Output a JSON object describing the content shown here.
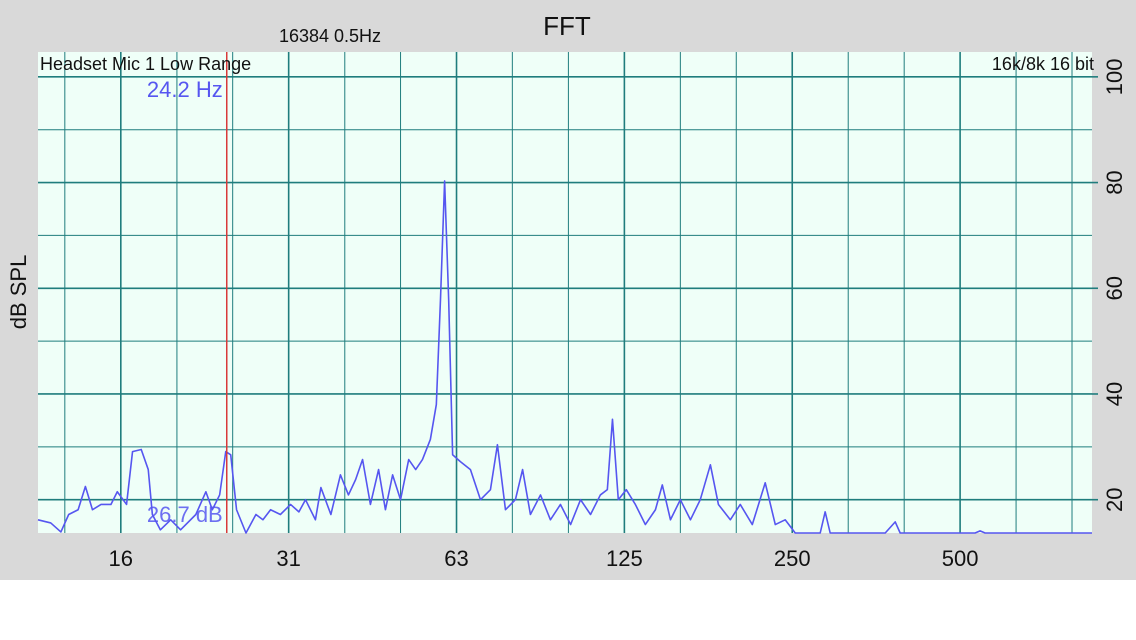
{
  "chart_data": {
    "type": "line",
    "title": "FFT",
    "subtitle": "16384  0.5Hz",
    "annotations": [
      "Headset Mic 1 Low Range",
      "16k/8k 16 bit"
    ],
    "ylabel": "dB SPL",
    "xscale": "log",
    "grid": true,
    "xlim": [
      11.1,
      862
    ],
    "ylim": [
      13.7,
      104.7
    ],
    "xticks": [
      {
        "value": 15.625,
        "label": "16"
      },
      {
        "value": 31.25,
        "label": "31"
      },
      {
        "value": 62.5,
        "label": "63"
      },
      125,
      250,
      500
    ],
    "xminor_ticks": [
      12.4,
      19.7,
      24.8,
      39.4,
      49.6,
      78.7,
      99.2,
      157.5,
      198.4,
      315,
      396.9,
      630,
      793.7
    ],
    "yticks": [
      20,
      40,
      60,
      80,
      100
    ],
    "yminor_ticks": [
      30,
      50,
      70,
      90
    ],
    "cursor": {
      "x": {
        "value": 24.2,
        "label": "24.2 Hz"
      },
      "y": {
        "value": 26.7,
        "label": "26.7 dB"
      },
      "color": "#d83a3a"
    },
    "x": [
      11.1,
      11.7,
      12.2,
      12.6,
      13.1,
      13.5,
      13.9,
      14.4,
      15.0,
      15.4,
      16.0,
      16.4,
      17.0,
      17.5,
      17.8,
      18.4,
      19.2,
      20.0,
      21.3,
      22.2,
      22.8,
      23.5,
      24.1,
      24.6,
      25.2,
      26.2,
      27.3,
      28.1,
      29.0,
      30.2,
      31.5,
      32.6,
      33.5,
      34.9,
      35.7,
      37.2,
      38.7,
      40.0,
      41.2,
      42.4,
      43.8,
      45.3,
      46.6,
      48.0,
      49.6,
      51.3,
      52.8,
      54.3,
      56.1,
      57.5,
      58.5,
      59.5,
      60.5,
      61.5,
      63.5,
      66.2,
      69.0,
      71.9,
      74.0,
      76.5,
      79.7,
      82.1,
      84.8,
      88.4,
      92.1,
      96.0,
      100.1,
      104.3,
      108.7,
      113.2,
      116.5,
      119.0,
      121.9,
      126.0,
      130.8,
      136.3,
      142.1,
      146.2,
      151.2,
      157.5,
      164.2,
      171.0,
      178.3,
      184.3,
      193.6,
      201.7,
      212.0,
      223.6,
      233.1,
      242.8,
      253.1,
      280.6,
      286.4,
      292.4,
      367.0,
      382.5,
      390.4,
      531.9,
      543.0,
      554.4,
      862
    ],
    "series": [
      {
        "color": "#5656f0",
        "values": [
          16.2,
          15.6,
          13.9,
          17.2,
          18.1,
          22.5,
          18.1,
          19.1,
          19.1,
          21.5,
          19.1,
          29.1,
          29.5,
          25.7,
          17.2,
          14.3,
          16.2,
          14.3,
          17.2,
          21.5,
          18.1,
          20.9,
          29.1,
          28.5,
          18.1,
          13.7,
          17.2,
          16.2,
          18.1,
          17.2,
          19.1,
          17.7,
          20.0,
          16.2,
          22.3,
          17.2,
          24.7,
          20.9,
          23.8,
          27.6,
          19.1,
          25.7,
          18.1,
          24.7,
          20.0,
          27.6,
          25.7,
          27.6,
          31.4,
          38.0,
          58.0,
          80.3,
          58.0,
          28.5,
          27.2,
          25.7,
          20.0,
          21.9,
          30.4,
          18.1,
          20.0,
          25.7,
          17.2,
          20.9,
          16.2,
          19.1,
          15.3,
          20.0,
          17.2,
          20.9,
          21.9,
          35.2,
          20.0,
          21.9,
          19.1,
          15.3,
          18.1,
          22.8,
          16.2,
          20.0,
          16.2,
          20.0,
          26.6,
          19.1,
          16.2,
          19.1,
          15.3,
          23.2,
          15.3,
          16.2,
          13.7,
          13.7,
          17.7,
          13.7,
          13.7,
          15.8,
          13.7,
          13.7,
          14.1,
          13.7,
          13.7
        ]
      }
    ]
  }
}
